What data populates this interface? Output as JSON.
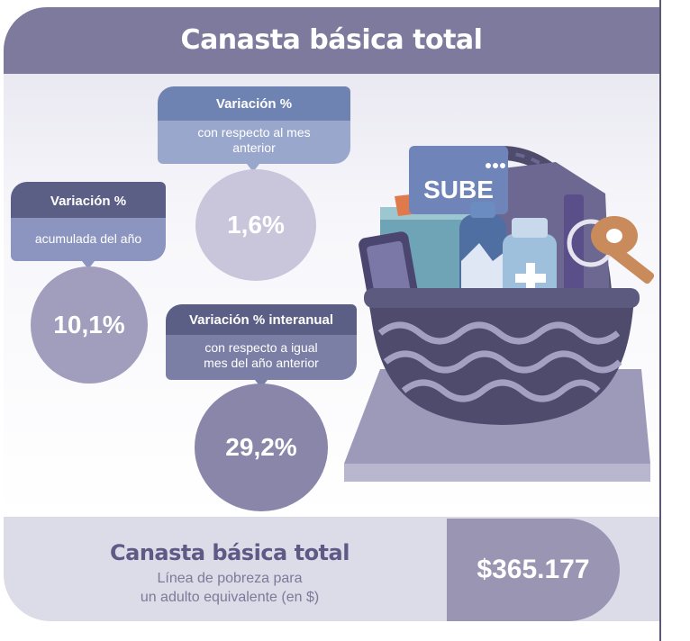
{
  "header": {
    "title": "Canasta básica total"
  },
  "bubbles": {
    "monthly": {
      "title": "Variación %",
      "subtitle": "con respecto al mes anterior",
      "value": "1,6%"
    },
    "ytd": {
      "title": "Variación %",
      "subtitle": "acumulada del año",
      "value": "10,1%"
    },
    "yoy": {
      "title": "Variación % interanual",
      "subtitle": "con respecto a igual mes del año anterior",
      "value": "29,2%"
    }
  },
  "illustration": {
    "card_text": "SUBE"
  },
  "footer": {
    "title": "Canasta básica total",
    "subtitle_line1": "Línea de pobreza para",
    "subtitle_line2": "un adulto equivalente (en $)",
    "price": "$365.177"
  },
  "colors": {
    "header_bg": "#7d7a9d",
    "bubble_dark": "#5b5e85",
    "bubble_blue": "#6f83b3",
    "bubble_light": "#9aa7cc",
    "circle_light": "#c9c6db",
    "circle_mid": "#a19dbd",
    "circle_dark": "#8a86aa",
    "price_bg": "#9995b3"
  }
}
